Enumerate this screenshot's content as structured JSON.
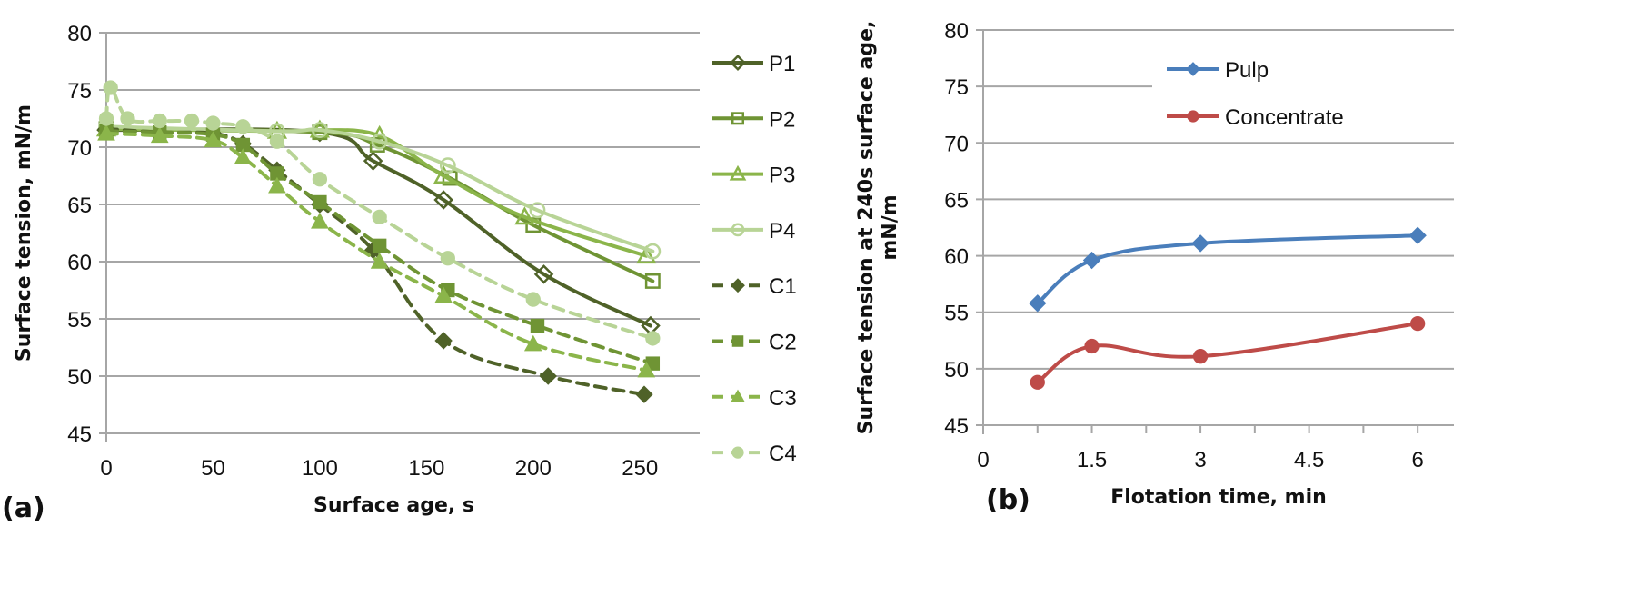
{
  "chart_data": [
    {
      "type": "line",
      "panel_label": "(a)",
      "title": "",
      "xlabel": "Surface age, s",
      "ylabel": "Surface tension, mN/m",
      "xlim": [
        0,
        278
      ],
      "ylim": [
        45,
        80
      ],
      "xticks": [
        "0",
        "50",
        "100",
        "150",
        "200",
        "250"
      ],
      "yticks": [
        "45",
        "50",
        "55",
        "60",
        "65",
        "70",
        "75",
        "80"
      ],
      "grid": "horizontal",
      "legend_position": "right",
      "series": [
        {
          "name": "P1",
          "style": "solid",
          "marker": "diamond-open",
          "color": "#4f6228",
          "x": [
            0,
            100,
            125,
            158,
            205,
            255
          ],
          "y": [
            71.5,
            71.3,
            68.8,
            65.4,
            58.9,
            54.4
          ]
        },
        {
          "name": "P2",
          "style": "solid",
          "marker": "square-open",
          "color": "#6f9434",
          "x": [
            0,
            100,
            127,
            161,
            200,
            256
          ],
          "y": [
            71.6,
            71.3,
            70.2,
            67.3,
            63.2,
            58.3
          ]
        },
        {
          "name": "P3",
          "style": "solid",
          "marker": "triangle-open",
          "color": "#8bb54a",
          "x": [
            0,
            80,
            100,
            128,
            158,
            196,
            253
          ],
          "y": [
            71.6,
            71.4,
            71.5,
            71.0,
            67.5,
            63.9,
            60.5
          ]
        },
        {
          "name": "P4",
          "style": "solid",
          "marker": "circle-open",
          "color": "#b8d496",
          "x": [
            0,
            80,
            100,
            128,
            160,
            202,
            256
          ],
          "y": [
            71.8,
            71.4,
            71.5,
            70.5,
            68.4,
            64.5,
            60.9
          ]
        },
        {
          "name": "C1",
          "style": "dashed",
          "marker": "diamond",
          "color": "#4f6228",
          "x": [
            0,
            25,
            50,
            64,
            80,
            100,
            125,
            158,
            207,
            252
          ],
          "y": [
            71.6,
            71.3,
            71.2,
            70.3,
            68.0,
            65.0,
            61.0,
            53.1,
            50.0,
            48.4
          ]
        },
        {
          "name": "C2",
          "style": "dashed",
          "marker": "square",
          "color": "#6f9434",
          "x": [
            0,
            25,
            50,
            64,
            80,
            100,
            128,
            160,
            202,
            256
          ],
          "y": [
            71.4,
            71.3,
            71.1,
            70.2,
            67.7,
            65.2,
            61.4,
            57.5,
            54.4,
            51.1
          ]
        },
        {
          "name": "C3",
          "style": "dashed",
          "marker": "triangle",
          "color": "#8bb54a",
          "x": [
            0,
            25,
            50,
            64,
            80,
            100,
            128,
            158,
            200,
            253
          ],
          "y": [
            71.2,
            71.0,
            70.6,
            69.1,
            66.6,
            63.5,
            60.0,
            57.0,
            52.8,
            50.5
          ]
        },
        {
          "name": "C4",
          "style": "dashed",
          "marker": "circle",
          "color": "#b8d496",
          "x": [
            0,
            2,
            10,
            25,
            40,
            50,
            64,
            80,
            100,
            128,
            160,
            200,
            256
          ],
          "y": [
            72.5,
            75.2,
            72.5,
            72.3,
            72.3,
            72.1,
            71.8,
            70.5,
            67.2,
            63.9,
            60.3,
            56.7,
            53.3
          ]
        }
      ]
    },
    {
      "type": "line",
      "panel_label": "(b)",
      "title": "",
      "xlabel": "Flotation time, min",
      "ylabel": "Surface tension at 240s surface age, mN/m",
      "ylabel_lines": [
        "Surface tension at 240s surface age,",
        "mN/m"
      ],
      "xlim": [
        0,
        6.5
      ],
      "ylim": [
        45,
        80
      ],
      "xticks": [
        "0",
        "1.5",
        "3",
        "4.5",
        "6"
      ],
      "yticks": [
        "45",
        "50",
        "55",
        "60",
        "65",
        "70",
        "75",
        "80"
      ],
      "grid": "horizontal",
      "legend_position": "top-right",
      "series": [
        {
          "name": "Pulp",
          "marker": "diamond",
          "color": "#4a7ebb",
          "x": [
            0.75,
            1.5,
            3,
            6
          ],
          "y": [
            55.8,
            59.6,
            61.1,
            61.8
          ]
        },
        {
          "name": "Concentrate",
          "marker": "circle",
          "color": "#be4b48",
          "x": [
            0.75,
            1.5,
            3,
            6
          ],
          "y": [
            48.8,
            52.0,
            51.1,
            54.0
          ]
        }
      ]
    }
  ]
}
